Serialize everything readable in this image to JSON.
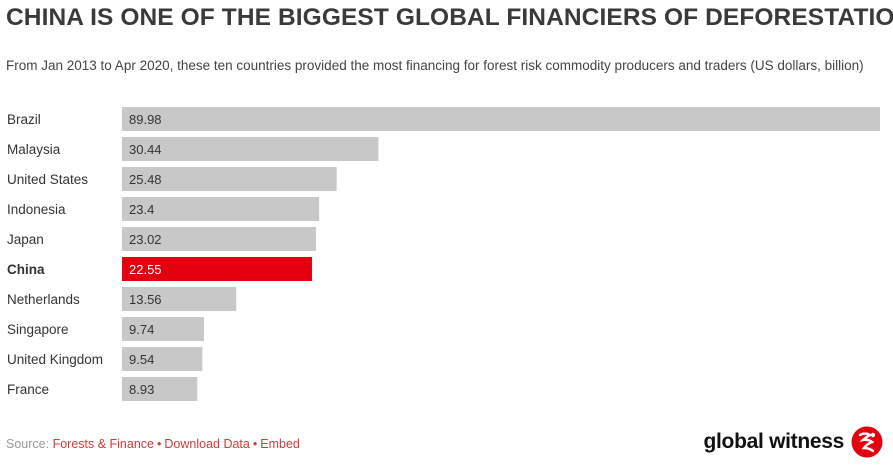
{
  "title": "CHINA IS ONE OF THE BIGGEST GLOBAL FINANCIERS OF DEFORESTATION",
  "subtitle": "From Jan 2013 to Apr 2020, these ten countries provided the most financing for forest risk commodity producers and traders (US dollars, billion)",
  "footer": {
    "source_prefix": "Source: ",
    "source_link": "Forests & Finance",
    "separator": "•",
    "download": "Download Data",
    "embed": "Embed"
  },
  "logo": {
    "text": "global witness"
  },
  "colors": {
    "bar": "#c8c8c8",
    "highlight": "#e3000f",
    "link": "#d43a3a"
  },
  "chart_data": {
    "type": "bar",
    "orientation": "horizontal",
    "categories": [
      "Brazil",
      "Malaysia",
      "United States",
      "Indonesia",
      "Japan",
      "China",
      "Netherlands",
      "Singapore",
      "United Kingdom",
      "France"
    ],
    "values": [
      89.98,
      30.44,
      25.48,
      23.4,
      23.02,
      22.55,
      13.56,
      9.74,
      9.54,
      8.93
    ],
    "value_labels": [
      "89.98",
      "30.44",
      "25.48",
      "23.4",
      "23.02",
      "22.55",
      "13.56",
      "9.74",
      "9.54",
      "8.93"
    ],
    "highlight": "China",
    "grid": false,
    "legend": "none"
  }
}
